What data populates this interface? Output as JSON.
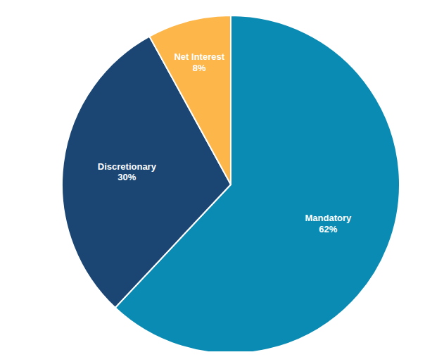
{
  "chart_data": {
    "type": "pie",
    "categories": [
      "Mandatory",
      "Discretionary",
      "Net Interest"
    ],
    "values": [
      62,
      30,
      8
    ],
    "value_labels": [
      "62%",
      "30%",
      "8%"
    ],
    "colors": [
      "#0a8bb3",
      "#1b4674",
      "#fdb64a"
    ],
    "data_labels": true
  }
}
